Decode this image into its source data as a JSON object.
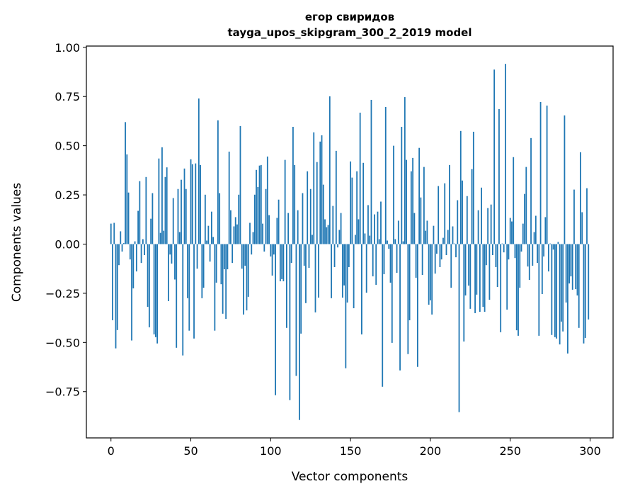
{
  "chart_data": {
    "type": "bar",
    "title": [
      "егор свиридов",
      "tayga_upos_skipgram_300_2_2019 model"
    ],
    "xlabel": "Vector components",
    "ylabel": "Components values",
    "xlim": [
      -15.4,
      314.4
    ],
    "ylim": [
      -0.985,
      1.0065
    ],
    "xticks": [
      0,
      50,
      100,
      150,
      200,
      250,
      300
    ],
    "xtick_labels": [
      "0",
      "50",
      "100",
      "150",
      "200",
      "250",
      "300"
    ],
    "yticks": [
      -0.75,
      -0.5,
      -0.25,
      0,
      0.25,
      0.5,
      0.75,
      1.0
    ],
    "ytick_labels": [
      "−0.75",
      "−0.50",
      "−0.25",
      "0.00",
      "0.25",
      "0.50",
      "0.75",
      "1.00"
    ],
    "grid": false,
    "bar_color": "#1f77b4",
    "values": [
      0.104,
      -0.387,
      0.108,
      -0.53,
      -0.437,
      -0.107,
      0.065,
      -0.038,
      0.005,
      0.62,
      0.456,
      0.262,
      -0.078,
      -0.49,
      -0.225,
      0.014,
      -0.139,
      0.169,
      0.32,
      -0.096,
      0.025,
      -0.056,
      0.341,
      -0.319,
      -0.423,
      0.129,
      0.259,
      -0.459,
      -0.473,
      -0.505,
      0.435,
      0.057,
      0.492,
      0.068,
      0.341,
      0.39,
      -0.29,
      -0.053,
      -0.099,
      0.234,
      -0.18,
      -0.527,
      0.28,
      0.061,
      0.327,
      -0.566,
      0.384,
      0.28,
      -0.275,
      -0.44,
      0.431,
      0.406,
      -0.48,
      0.41,
      -0.125,
      0.74,
      0.402,
      -0.275,
      -0.222,
      0.251,
      0.018,
      0.093,
      -0.089,
      0.165,
      0.036,
      -0.44,
      -0.196,
      0.629,
      0.259,
      -0.204,
      -0.354,
      -0.128,
      -0.38,
      -0.128,
      0.47,
      0.172,
      -0.096,
      0.09,
      0.137,
      0.1,
      0.251,
      0.6,
      -0.125,
      -0.358,
      -0.11,
      -0.337,
      -0.268,
      0.108,
      -0.053,
      0.061,
      0.251,
      0.377,
      0.29,
      0.399,
      0.402,
      0.104,
      -0.038,
      0.28,
      0.445,
      0.147,
      -0.063,
      -0.16,
      -0.053,
      -0.768,
      0.133,
      0.226,
      -0.189,
      -0.178,
      -0.189,
      0.428,
      -0.426,
      0.158,
      -0.793,
      -0.096,
      0.596,
      0.402,
      -0.67,
      0.172,
      -0.894,
      -0.455,
      0.259,
      -0.11,
      -0.3,
      0.37,
      -0.121,
      0.28,
      0.047,
      0.568,
      -0.347,
      0.417,
      -0.272,
      0.521,
      0.553,
      0.302,
      0.126,
      0.086,
      0.097,
      0.751,
      -0.275,
      0.194,
      -0.117,
      0.474,
      -0.017,
      0.072,
      0.158,
      -0.272,
      -0.21,
      -0.631,
      -0.297,
      -0.117,
      0.42,
      0.338,
      -0.326,
      0.047,
      0.37,
      0.126,
      0.668,
      -0.459,
      0.413,
      0.054,
      -0.247,
      0.198,
      0.043,
      0.733,
      -0.164,
      0.151,
      -0.207,
      0.165,
      0.025,
      0.216,
      -0.725,
      -0.153,
      0.697,
      0.018,
      -0.024,
      -0.196,
      -0.502,
      0.5,
      0.025,
      -0.146,
      0.119,
      -0.642,
      0.596,
      0.014,
      0.747,
      0.428,
      -0.559,
      -0.387,
      0.37,
      0.438,
      0.158,
      -0.171,
      -0.624,
      0.489,
      0.237,
      -0.157,
      0.392,
      0.068,
      0.119,
      -0.308,
      -0.286,
      -0.358,
      0.093,
      -0.15,
      -0.049,
      0.295,
      -0.117,
      -0.078,
      0.032,
      0.309,
      -0.056,
      0.072,
      0.402,
      -0.222,
      0.09,
      0.003,
      -0.067,
      0.223,
      -0.854,
      0.575,
      0.323,
      -0.495,
      -0.261,
      0.244,
      -0.211,
      -0.329,
      0.381,
      0.571,
      -0.351,
      -0.257,
      0.172,
      -0.344,
      0.287,
      -0.319,
      -0.344,
      -0.107,
      0.183,
      -0.283,
      0.201,
      -0.056,
      0.887,
      -0.117,
      -0.218,
      0.686,
      -0.448,
      0.003,
      -0.042,
      0.916,
      -0.333,
      -0.078,
      0.133,
      0.115,
      0.442,
      -0.071,
      -0.438,
      -0.466,
      -0.222,
      -0.038,
      0.104,
      0.255,
      0.392,
      -0.114,
      -0.182,
      0.539,
      -0.11,
      0.061,
      0.144,
      -0.096,
      -0.466,
      0.722,
      -0.254,
      -0.063,
      0.137,
      0.704,
      -0.139,
      0.003,
      -0.462,
      -0.028,
      -0.473,
      -0.48,
      0.011,
      -0.51,
      -0.394,
      -0.444,
      0.654,
      -0.297,
      -0.556,
      -0.2,
      -0.164,
      -0.232,
      0.277,
      -0.229,
      -0.261,
      -0.426,
      0.467,
      0.162,
      -0.505,
      -0.477,
      0.284,
      -0.383
    ]
  }
}
